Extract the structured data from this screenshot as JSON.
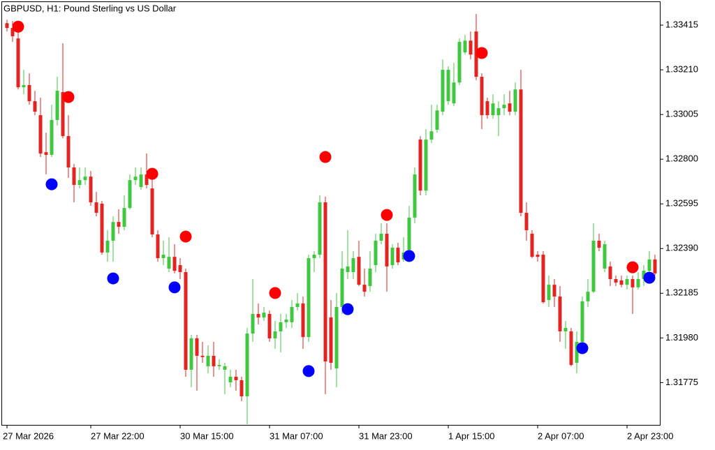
{
  "chart_data": {
    "type": "candlestick",
    "title": "GBPUSD, H1:  Pound Sterling vs US Dollar",
    "categories": [
      "27 Mar 2026",
      null,
      null,
      null,
      null,
      null,
      null,
      null,
      null,
      null,
      null,
      null,
      null,
      null,
      null,
      "27 Mar 22:00",
      null,
      null,
      null,
      null,
      null,
      null,
      null,
      null,
      null,
      null,
      null,
      null,
      null,
      null,
      null,
      "30 Mar 15:00",
      null,
      null,
      null,
      null,
      null,
      null,
      null,
      null,
      null,
      null,
      null,
      null,
      null,
      null,
      null,
      "31 Mar 07:00",
      null,
      null,
      null,
      null,
      null,
      null,
      null,
      null,
      null,
      null,
      null,
      null,
      null,
      null,
      null,
      "31 Mar 23:00",
      null,
      null,
      null,
      null,
      null,
      null,
      null,
      null,
      null,
      null,
      null,
      null,
      null,
      null,
      null,
      "1 Apr 15:00",
      null,
      null,
      null,
      null,
      null,
      null,
      null,
      null,
      null,
      null,
      null,
      null,
      null,
      null,
      null,
      "2 Apr 07:00",
      null,
      null,
      null,
      null,
      null,
      null,
      null,
      null,
      null,
      null,
      null,
      null,
      null,
      null,
      null,
      "2 Apr 23:00",
      null,
      null,
      null,
      null,
      null
    ],
    "open": [
      1.33424,
      1.33402,
      1.33354,
      1.3313,
      1.3314,
      1.33066,
      1.33002,
      1.32832,
      1.3282,
      1.3298,
      1.33108,
      1.32906,
      1.32762,
      1.32682,
      1.32704,
      1.3272,
      1.32602,
      1.32596,
      1.32372,
      1.32426,
      1.32512,
      1.3249,
      1.32576,
      1.32704,
      1.32672,
      1.3273,
      1.32666,
      1.32455,
      1.32346,
      1.32298,
      1.32352,
      1.32314,
      1.32282,
      1.31834,
      1.31978,
      1.31898,
      1.3185,
      1.31898,
      1.3185,
      1.31834,
      1.31776,
      1.31802,
      1.31786,
      1.31712,
      1.32,
      1.3209,
      1.32074,
      1.3209,
      1.31978,
      1.3201,
      1.32052,
      1.32052,
      1.32122,
      1.32138,
      1.31984,
      1.32346,
      1.32362,
      1.32602,
      1.32074,
      1.3184,
      1.32122,
      1.32282,
      1.32282,
      1.32352,
      1.32224,
      1.32218,
      1.32314,
      1.32426,
      1.32458,
      1.32314,
      1.32394,
      1.3234,
      1.32384,
      1.32532,
      1.3289,
      1.32656,
      1.3289,
      1.32935,
      1.33018,
      1.33066,
      1.33056,
      1.33152,
      1.3329,
      1.33344,
      1.33386,
      1.33178,
      1.33066,
      1.33002,
      1.33002,
      1.33034,
      1.33056,
      1.33018,
      1.3312,
      1.32554,
      1.32458,
      1.32362,
      1.32362,
      1.32154,
      1.32224,
      1.3217,
      1.3201,
      1.3201,
      1.31866,
      1.31962,
      1.32148,
      1.32192,
      1.32426,
      1.32298,
      1.32308,
      1.3225,
      1.32244,
      1.32224,
      1.3225,
      1.32212,
      1.3225,
      1.32288,
      1.3234
    ],
    "high": [
      1.3344,
      1.33434,
      1.33386,
      1.3321,
      1.33194,
      1.33114,
      1.33082,
      1.32922,
      1.3305,
      1.33178,
      1.33332,
      1.33002,
      1.32778,
      1.32762,
      1.32762,
      1.32746,
      1.3265,
      1.32608,
      1.32474,
      1.32538,
      1.3257,
      1.32634,
      1.3273,
      1.32762,
      1.32762,
      1.32826,
      1.3273,
      1.32474,
      1.32426,
      1.32442,
      1.3241,
      1.32346,
      1.32298,
      1.31994,
      1.31994,
      1.31962,
      1.31946,
      1.31962,
      1.31882,
      1.31866,
      1.31834,
      1.31834,
      1.31802,
      1.32026,
      1.3225,
      1.32138,
      1.32122,
      1.32106,
      1.32058,
      1.3209,
      1.3209,
      1.32154,
      1.32186,
      1.3217,
      1.32362,
      1.32378,
      1.32634,
      1.32628,
      1.32154,
      1.32186,
      1.32378,
      1.32474,
      1.32378,
      1.32426,
      1.32298,
      1.32378,
      1.32458,
      1.32506,
      1.32506,
      1.3241,
      1.32416,
      1.32442,
      1.32586,
      1.32762,
      1.32906,
      1.32938,
      1.3305,
      1.3305,
      1.33258,
      1.33226,
      1.33242,
      1.33354,
      1.3337,
      1.33386,
      1.33466,
      1.33194,
      1.33082,
      1.33098,
      1.33066,
      1.33098,
      1.33114,
      1.33152,
      1.3321,
      1.32602,
      1.32474,
      1.32378,
      1.32378,
      1.32266,
      1.3225,
      1.32218,
      1.32058,
      1.32026,
      1.3201,
      1.3217,
      1.3225,
      1.32506,
      1.32458,
      1.32426,
      1.3233,
      1.32266,
      1.32266,
      1.32266,
      1.32266,
      1.32282,
      1.32314,
      1.32378,
      1.32362
    ],
    "low": [
      1.33386,
      1.33338,
      1.3312,
      1.33098,
      1.3305,
      1.33002,
      1.3281,
      1.3273,
      1.3281,
      1.32954,
      1.32896,
      1.32714,
      1.32602,
      1.32666,
      1.32682,
      1.32586,
      1.32538,
      1.32362,
      1.3233,
      1.3233,
      1.32458,
      1.32474,
      1.3257,
      1.32682,
      1.3266,
      1.32666,
      1.32442,
      1.3233,
      1.32314,
      1.32282,
      1.32276,
      1.3225,
      1.31802,
      1.31754,
      1.31738,
      1.31866,
      1.31818,
      1.31802,
      1.31834,
      1.31722,
      1.31754,
      1.31738,
      1.3169,
      1.31584,
      1.31962,
      1.32042,
      1.32058,
      1.31962,
      1.3193,
      1.31914,
      1.32026,
      1.32026,
      1.32106,
      1.3193,
      1.31962,
      1.32282,
      1.32346,
      1.31722,
      1.31834,
      1.31754,
      1.3209,
      1.3225,
      1.3225,
      1.32218,
      1.3217,
      1.32192,
      1.32282,
      1.3241,
      1.32192,
      1.32298,
      1.32314,
      1.3233,
      1.32346,
      1.32506,
      1.32634,
      1.32634,
      1.32874,
      1.32922,
      1.33002,
      1.3305,
      1.33044,
      1.3314,
      1.3328,
      1.33258,
      1.33162,
      1.32938,
      1.32986,
      1.32986,
      1.32906,
      1.33002,
      1.33002,
      1.33002,
      1.32538,
      1.32426,
      1.32346,
      1.3233,
      1.32138,
      1.32122,
      1.32122,
      1.31962,
      1.3193,
      1.3185,
      1.31818,
      1.3193,
      1.32122,
      1.32186,
      1.32378,
      1.32282,
      1.32218,
      1.32218,
      1.32212,
      1.32202,
      1.3209,
      1.32202,
      1.32218,
      1.32276,
      1.32266
    ],
    "close": [
      1.33402,
      1.33364,
      1.3313,
      1.3314,
      1.33066,
      1.33018,
      1.32826,
      1.3282,
      1.3298,
      1.33114,
      1.32906,
      1.32762,
      1.32682,
      1.32704,
      1.3272,
      1.32602,
      1.32554,
      1.32372,
      1.32426,
      1.32512,
      1.3249,
      1.32576,
      1.32704,
      1.3272,
      1.3273,
      1.32682,
      1.32455,
      1.32346,
      1.32362,
      1.32352,
      1.32288,
      1.32282,
      1.31834,
      1.31978,
      1.31898,
      1.31892,
      1.31898,
      1.3185,
      1.31856,
      1.3185,
      1.31802,
      1.31786,
      1.31712,
      1.32,
      1.3209,
      1.32074,
      1.32096,
      1.31978,
      1.3201,
      1.32052,
      1.32064,
      1.32122,
      1.32138,
      1.31984,
      1.32346,
      1.32362,
      1.32602,
      1.31872,
      1.31866,
      1.32122,
      1.32298,
      1.32308,
      1.32346,
      1.32224,
      1.32192,
      1.32298,
      1.32426,
      1.32458,
      1.32308,
      1.32394,
      1.32327,
      1.32372,
      1.32532,
      1.3273,
      1.32656,
      1.3289,
      1.32928,
      1.33024,
      1.3321,
      1.3321,
      1.33152,
      1.33338,
      1.33344,
      1.3328,
      1.33178,
      1.33002,
      1.33002,
      1.33056,
      1.33034,
      1.3305,
      1.33018,
      1.3312,
      1.32554,
      1.32474,
      1.32352,
      1.32352,
      1.32144,
      1.32224,
      1.3217,
      1.3201,
      1.32026,
      1.31856,
      1.31962,
      1.32148,
      1.32192,
      1.32426,
      1.32394,
      1.3241,
      1.3225,
      1.32234,
      1.32224,
      1.3225,
      1.32212,
      1.3225,
      1.32288,
      1.3234,
      1.32276
    ],
    "up_color": "#3fc83f",
    "down_color": "#e3231f",
    "markers": [
      {
        "color": "#ff0000",
        "x": [
          2,
          11,
          26,
          32,
          48,
          57,
          68,
          85,
          112
        ],
        "values": [
          1.33408,
          1.33085,
          1.32733,
          1.32445,
          1.32186,
          1.3281,
          1.32544,
          1.33287,
          1.32304
        ]
      },
      {
        "color": "#0000ff",
        "x": [
          8,
          19,
          30,
          54,
          61,
          72,
          103,
          115
        ],
        "values": [
          1.32685,
          1.32253,
          1.32212,
          1.31828,
          1.32112,
          1.32356,
          1.31933,
          1.32256
        ]
      }
    ],
    "ylim": [
      1.31581,
      1.33524
    ],
    "yticks": [
      1.33415,
      {
        "value": 1.3321,
        "label": "1.33210"
      },
      1.33005,
      {
        "value": 1.328,
        "label": "1.32800"
      },
      1.32595,
      {
        "value": 1.3239,
        "label": "1.32390"
      },
      1.32185,
      {
        "value": 1.3198,
        "label": "1.31980"
      },
      1.31775
    ]
  }
}
